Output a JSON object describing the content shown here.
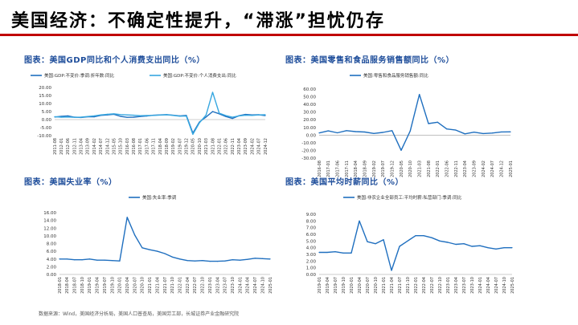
{
  "slide": {
    "title": "美国经济：不确定性提升，“滞涨”担忧仍存",
    "source": "数据来源：Wind，美国经济分析局，美国人口普查局，美国劳工部，长城证券产业金融研究院"
  },
  "colors": {
    "accent": "#c00000",
    "title_blue": "#1f4e9b",
    "series_dark": "#1f6fbf",
    "series_light": "#37a7e0"
  },
  "chart_data": [
    {
      "type": "line",
      "title": "图表：美国GDP同比和个人消费支出同比（%）",
      "ylim": [
        -10,
        20
      ],
      "yticks": [
        -10,
        -5,
        0,
        5,
        10,
        15,
        20
      ],
      "ytick_labels": [
        "-10.00",
        "-5.00",
        "0.00",
        "5.00",
        "10.00",
        "15.00",
        "20.00"
      ],
      "x": [
        "2011-08",
        "2012-01",
        "2012-06",
        "2012-11",
        "2013-04",
        "2013-09",
        "2014-02",
        "2014-07",
        "2014-12",
        "2015-05",
        "2015-10",
        "2016-03",
        "2016-08",
        "2017-01",
        "2017-06",
        "2017-11",
        "2018-04",
        "2018-09",
        "2019-02",
        "2019-07",
        "2019-12",
        "2020-05",
        "2020-10",
        "2021-03",
        "2021-08",
        "2022-01",
        "2022-06",
        "2022-11",
        "2023-04",
        "2023-09",
        "2024-02",
        "2024-07",
        "2024-12"
      ],
      "series": [
        {
          "name": "美国:GDP:不变价:季调:折年数:同比",
          "color": "#1f6fbf",
          "values": [
            1.6,
            2.0,
            2.3,
            1.5,
            1.3,
            1.7,
            1.7,
            2.6,
            2.9,
            3.3,
            2.0,
            1.4,
            1.5,
            1.9,
            2.2,
            2.7,
            2.9,
            3.1,
            2.7,
            2.3,
            2.6,
            -8.4,
            -1.5,
            1.6,
            5.0,
            3.6,
            1.9,
            0.7,
            2.4,
            3.2,
            2.9,
            3.0,
            2.5
          ]
        },
        {
          "name": "美国:GDP:不变价:个人消费支出:同比",
          "color": "#37a7e0",
          "values": [
            1.8,
            1.5,
            1.6,
            1.4,
            1.5,
            1.9,
            2.3,
            2.9,
            3.3,
            3.6,
            3.1,
            2.9,
            2.7,
            2.4,
            2.5,
            2.6,
            2.8,
            3.0,
            2.6,
            2.1,
            2.2,
            -9.2,
            -2.0,
            2.8,
            17.0,
            4.0,
            2.5,
            1.5,
            2.3,
            2.7,
            2.6,
            2.9,
            3.0
          ]
        }
      ]
    },
    {
      "type": "line",
      "title": "图表：美国零售和食品服务销售额同比（%）",
      "ylim": [
        -30,
        60
      ],
      "yticks": [
        -30,
        -20,
        -10,
        0,
        10,
        20,
        30,
        40,
        50,
        60
      ],
      "ytick_labels": [
        "-30.00",
        "-20.00",
        "-10.00",
        "0.00",
        "10.00",
        "20.00",
        "30.00",
        "40.00",
        "50.00",
        "60.00"
      ],
      "x": [
        "2016-08",
        "2017-01",
        "2017-06",
        "2017-11",
        "2018-04",
        "2018-09",
        "2019-02",
        "2019-07",
        "2019-12",
        "2020-05",
        "2020-10",
        "2021-03",
        "2021-08",
        "2022-01",
        "2022-06",
        "2022-11",
        "2023-04",
        "2023-09",
        "2024-02",
        "2024-07",
        "2024-12",
        "2025-01"
      ],
      "series": [
        {
          "name": "美国:零售和食品服务销售额:同比",
          "color": "#1f6fbf",
          "values": [
            2.8,
            5.5,
            3.0,
            5.8,
            4.5,
            4.0,
            2.1,
            3.5,
            5.8,
            -19.9,
            5.4,
            53.0,
            15.0,
            16.8,
            8.0,
            6.5,
            1.6,
            3.8,
            2.0,
            2.7,
            4.1,
            4.2
          ]
        }
      ]
    },
    {
      "type": "line",
      "title": "图表：美国失业率（%）",
      "ylim": [
        0,
        16
      ],
      "yticks": [
        0,
        2,
        4,
        6,
        8,
        10,
        12,
        14,
        16
      ],
      "ytick_labels": [
        "0.00",
        "2.00",
        "4.00",
        "6.00",
        "8.00",
        "10.00",
        "12.00",
        "14.00",
        "16.00"
      ],
      "x": [
        "2018-01",
        "2018-04",
        "2018-07",
        "2018-10",
        "2019-01",
        "2019-04",
        "2019-07",
        "2019-10",
        "2020-01",
        "2020-04",
        "2020-07",
        "2020-10",
        "2021-01",
        "2021-04",
        "2021-07",
        "2021-10",
        "2022-01",
        "2022-04",
        "2022-07",
        "2022-10",
        "2023-01",
        "2023-04",
        "2023-07",
        "2023-10",
        "2024-01",
        "2024-04",
        "2024-07",
        "2024-10",
        "2025-01"
      ],
      "series": [
        {
          "name": "美国:失业率:季调",
          "color": "#1f6fbf",
          "values": [
            4.0,
            4.0,
            3.8,
            3.8,
            4.0,
            3.7,
            3.7,
            3.6,
            3.5,
            14.8,
            10.2,
            6.9,
            6.4,
            6.0,
            5.4,
            4.5,
            4.0,
            3.6,
            3.5,
            3.6,
            3.4,
            3.4,
            3.5,
            3.8,
            3.7,
            3.9,
            4.2,
            4.1,
            4.0
          ]
        }
      ]
    },
    {
      "type": "line",
      "title": "图表：美国平均时薪同比（%）",
      "ylim": [
        0,
        9
      ],
      "yticks": [
        0,
        1,
        2,
        3,
        4,
        5,
        6,
        7,
        8,
        9
      ],
      "ytick_labels": [
        "0.00",
        "1.00",
        "2.00",
        "3.00",
        "4.00",
        "5.00",
        "6.00",
        "7.00",
        "8.00",
        "9.00"
      ],
      "x": [
        "2019-01",
        "2019-04",
        "2019-07",
        "2019-10",
        "2020-01",
        "2020-04",
        "2020-07",
        "2020-10",
        "2021-01",
        "2021-04",
        "2021-07",
        "2021-10",
        "2022-01",
        "2022-04",
        "2022-07",
        "2022-10",
        "2023-01",
        "2023-04",
        "2023-07",
        "2023-10",
        "2024-01",
        "2024-04",
        "2024-07",
        "2024-10",
        "2025-01"
      ],
      "series": [
        {
          "name": "美国:非农企业全部员工:平均时薪:私营部门:季调:同比",
          "color": "#1f6fbf",
          "values": [
            3.3,
            3.3,
            3.4,
            3.2,
            3.2,
            8.0,
            4.9,
            4.6,
            5.2,
            0.6,
            4.2,
            5.0,
            5.8,
            5.8,
            5.5,
            5.0,
            4.8,
            4.5,
            4.6,
            4.2,
            4.3,
            4.0,
            3.8,
            4.0,
            4.0
          ]
        }
      ]
    }
  ]
}
